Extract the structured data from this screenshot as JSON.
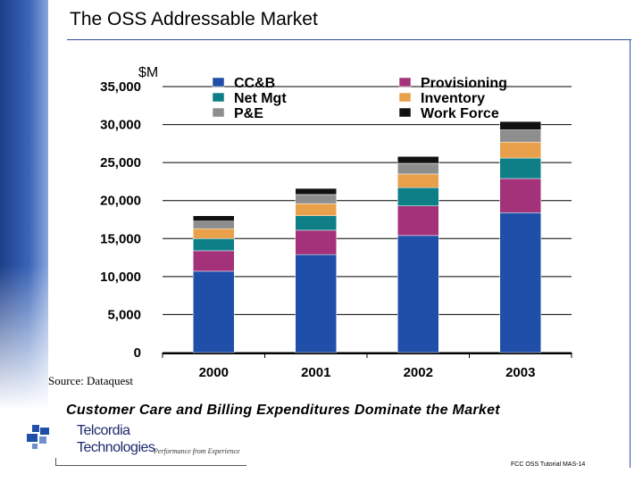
{
  "slide": {
    "title": "The OSS Addressable Market",
    "source": "Source: Dataquest",
    "subtitle": "Customer Care and Billing Expenditures Dominate the Market",
    "footer": "FCC OSS Tutorial MAS-14",
    "logo_line1": "Telcordia",
    "logo_line2": "Technologies",
    "tagline": "Performance from Experience"
  },
  "chart_data": {
    "type": "bar",
    "stacked": true,
    "unit_label": "$M",
    "categories": [
      "2000",
      "2001",
      "2002",
      "2003"
    ],
    "ylim": [
      0,
      35000
    ],
    "yticks": [
      0,
      5000,
      10000,
      15000,
      20000,
      25000,
      30000,
      35000
    ],
    "ytick_labels": [
      "0",
      "5,000",
      "10,000",
      "15,000",
      "20,000",
      "25,000",
      "30,000",
      "35,000"
    ],
    "legend_placement": "top",
    "series": [
      {
        "name": "CC&B",
        "color": "#1f4fa8",
        "values": [
          10700,
          12900,
          15400,
          18400
        ]
      },
      {
        "name": "Provisioning",
        "color": "#a3327a",
        "values": [
          2700,
          3200,
          3900,
          4500
        ]
      },
      {
        "name": "Net Mgt",
        "color": "#0e7f86",
        "values": [
          1600,
          1900,
          2400,
          2700
        ]
      },
      {
        "name": "Inventory",
        "color": "#e8a04a",
        "values": [
          1300,
          1600,
          1800,
          2100
        ]
      },
      {
        "name": "P&E",
        "color": "#8e8e8e",
        "values": [
          1000,
          1200,
          1400,
          1600
        ]
      },
      {
        "name": "Work Force",
        "color": "#111111",
        "values": [
          700,
          800,
          900,
          1100
        ]
      }
    ]
  },
  "colors": {
    "accent": "#2f4d9a"
  }
}
